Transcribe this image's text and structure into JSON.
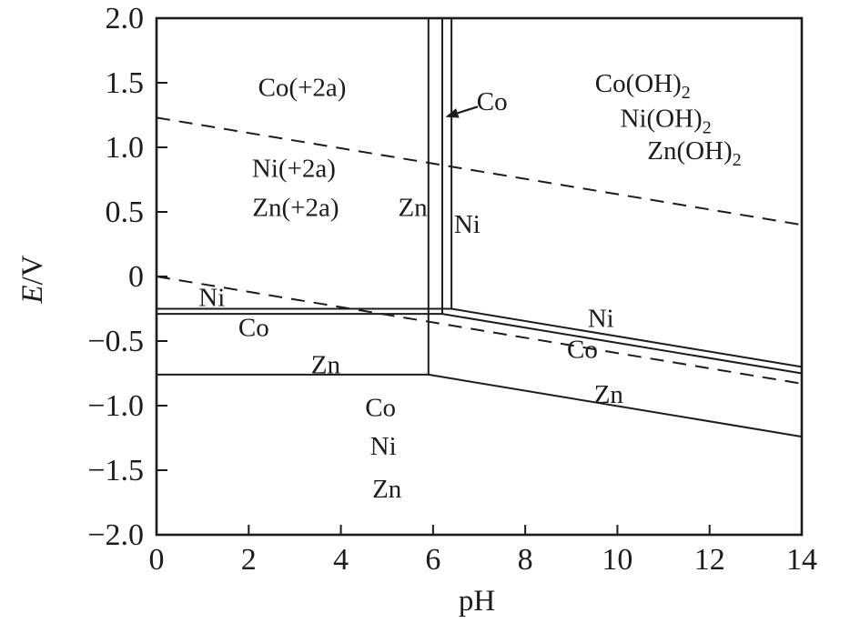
{
  "figure": {
    "background": "#ffffff",
    "ink_color": "#1c1c1c"
  },
  "chart_data": {
    "type": "line",
    "title": "",
    "xlabel": "pH",
    "ylabel_italic": "E",
    "ylabel_rest": "/V",
    "xlim": [
      0,
      14
    ],
    "ylim": [
      -2.0,
      2.0
    ],
    "grid": false,
    "legend": "none",
    "x_ticks": [
      {
        "v": 0,
        "label": "0"
      },
      {
        "v": 2,
        "label": "2"
      },
      {
        "v": 4,
        "label": "4"
      },
      {
        "v": 6,
        "label": "6"
      },
      {
        "v": 8,
        "label": "8"
      },
      {
        "v": 10,
        "label": "10"
      },
      {
        "v": 12,
        "label": "12"
      },
      {
        "v": 14,
        "label": "14"
      }
    ],
    "y_ticks": [
      {
        "v": 2.0,
        "label": "2.0"
      },
      {
        "v": 1.5,
        "label": "1.5"
      },
      {
        "v": 1.0,
        "label": "1.0"
      },
      {
        "v": 0.5,
        "label": "0.5"
      },
      {
        "v": 0,
        "label": "0"
      },
      {
        "v": -0.5,
        "label": "−0.5"
      },
      {
        "v": -1.0,
        "label": "−1.0"
      },
      {
        "v": -1.5,
        "label": "−1.5"
      },
      {
        "v": -2.0,
        "label": "−2.0"
      }
    ],
    "series": [
      {
        "name": "oxygen-line-dashed",
        "dash": true,
        "points": [
          [
            0,
            1.23
          ],
          [
            14,
            0.4
          ]
        ]
      },
      {
        "name": "hydrogen-line-dashed",
        "dash": true,
        "points": [
          [
            0,
            0.0
          ],
          [
            14,
            -0.83
          ]
        ]
      },
      {
        "name": "ni-metal-boundary",
        "dash": false,
        "points": [
          [
            0,
            -0.25
          ],
          [
            6.4,
            -0.25
          ],
          [
            14,
            -0.7
          ]
        ]
      },
      {
        "name": "co-metal-boundary",
        "dash": false,
        "points": [
          [
            0,
            -0.29
          ],
          [
            6.2,
            -0.29
          ],
          [
            14,
            -0.75
          ]
        ]
      },
      {
        "name": "zn-metal-boundary",
        "dash": false,
        "points": [
          [
            0,
            -0.76
          ],
          [
            5.9,
            -0.76
          ],
          [
            14,
            -1.24
          ]
        ]
      },
      {
        "name": "zn-hydroxide-vertical",
        "dash": false,
        "points": [
          [
            5.9,
            2.0
          ],
          [
            5.9,
            -0.76
          ]
        ]
      },
      {
        "name": "co-hydroxide-vertical",
        "dash": false,
        "points": [
          [
            6.2,
            2.0
          ],
          [
            6.2,
            -0.29
          ]
        ]
      },
      {
        "name": "ni-hydroxide-vertical",
        "dash": false,
        "points": [
          [
            6.4,
            2.0
          ],
          [
            6.4,
            -0.25
          ]
        ]
      }
    ],
    "labels": [
      {
        "name": "label-co-aqueous",
        "text": "Co(+2a)",
        "x": 3.16,
        "y": 1.47
      },
      {
        "name": "label-ni-aqueous",
        "text": "Ni(+2a)",
        "x": 2.98,
        "y": 0.84
      },
      {
        "name": "label-zn-aqueous",
        "text": "Zn(+2a)",
        "x": 3.02,
        "y": 0.54
      },
      {
        "name": "label-zn-vertical",
        "text": "Zn",
        "x": 5.56,
        "y": 0.54
      },
      {
        "name": "label-ni-vertical",
        "text": "Ni",
        "x": 6.74,
        "y": 0.41
      },
      {
        "name": "label-co-hydroxide",
        "text": "Co(OH)",
        "sub": "2",
        "x": 10.55,
        "y": 1.5
      },
      {
        "name": "label-ni-hydroxide",
        "text": "Ni(OH)",
        "sub": "2",
        "x": 11.05,
        "y": 1.23
      },
      {
        "name": "label-zn-hydroxide",
        "text": "Zn(OH)",
        "sub": "2",
        "x": 11.67,
        "y": 0.98
      },
      {
        "name": "label-ni-left",
        "text": "Ni",
        "x": 1.2,
        "y": -0.16
      },
      {
        "name": "label-co-left",
        "text": "Co",
        "x": 2.11,
        "y": -0.39
      },
      {
        "name": "label-zn-left",
        "text": "Zn",
        "x": 3.67,
        "y": -0.68
      },
      {
        "name": "label-co-immunity",
        "text": "Co",
        "x": 4.86,
        "y": -1.01
      },
      {
        "name": "label-ni-immunity",
        "text": "Ni",
        "x": 4.92,
        "y": -1.31
      },
      {
        "name": "label-zn-immunity",
        "text": "Zn",
        "x": 5.0,
        "y": -1.64
      },
      {
        "name": "label-ni-right",
        "text": "Ni",
        "x": 9.64,
        "y": -0.32
      },
      {
        "name": "label-co-right",
        "text": "Co",
        "x": 9.24,
        "y": -0.56
      },
      {
        "name": "label-zn-right",
        "text": "Zn",
        "x": 9.81,
        "y": -0.91
      }
    ],
    "arrow_annotation": {
      "name": "co-vertical-annotation",
      "text": "Co",
      "label_x": 7.28,
      "label_y": 1.36,
      "tail": [
        6.97,
        1.315
      ],
      "tip": [
        6.27,
        1.235
      ]
    }
  }
}
